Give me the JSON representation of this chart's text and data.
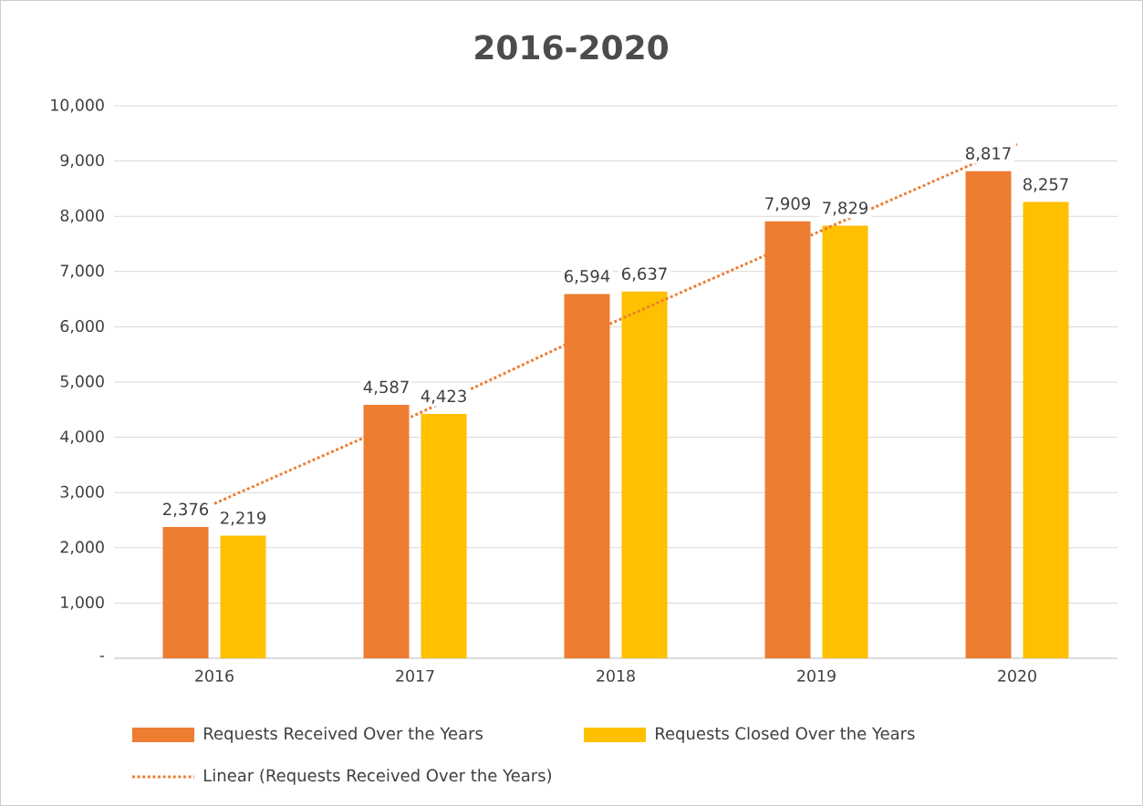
{
  "chart_data": {
    "type": "bar",
    "title": "2016-2020",
    "categories": [
      "2016",
      "2017",
      "2018",
      "2019",
      "2020"
    ],
    "series": [
      {
        "name": "Requests Received Over the Years",
        "color": "#ed7d31",
        "values": [
          2376,
          4587,
          6594,
          7909,
          8817
        ],
        "value_labels": [
          "2,376",
          "4,587",
          "6,594",
          "7,909",
          "8,817"
        ]
      },
      {
        "name": "Requests Closed Over the Years",
        "color": "#ffc000",
        "values": [
          2219,
          4423,
          6637,
          7829,
          8257
        ],
        "value_labels": [
          "2,219",
          "4,423",
          "6,637",
          "7,829",
          "8,257"
        ]
      },
      {
        "name": "Linear (Requests Received Over the Years)",
        "type": "line",
        "line_style": "dotted",
        "color": "#ed7d31",
        "values": [
          2800,
          4400,
          6100,
          7700,
          9300
        ]
      }
    ],
    "ylim": [
      0,
      10000
    ],
    "yticks": [
      {
        "value": 0,
        "label": "-"
      },
      {
        "value": 1000,
        "label": "1,000"
      },
      {
        "value": 2000,
        "label": "2,000"
      },
      {
        "value": 3000,
        "label": "3,000"
      },
      {
        "value": 4000,
        "label": "4,000"
      },
      {
        "value": 5000,
        "label": "5,000"
      },
      {
        "value": 6000,
        "label": "6,000"
      },
      {
        "value": 7000,
        "label": "7,000"
      },
      {
        "value": 8000,
        "label": "8,000"
      },
      {
        "value": 9000,
        "label": "9,000"
      },
      {
        "value": 10000,
        "label": "10,000"
      }
    ],
    "grid": "y",
    "legend": "bottom",
    "marker": "none"
  }
}
